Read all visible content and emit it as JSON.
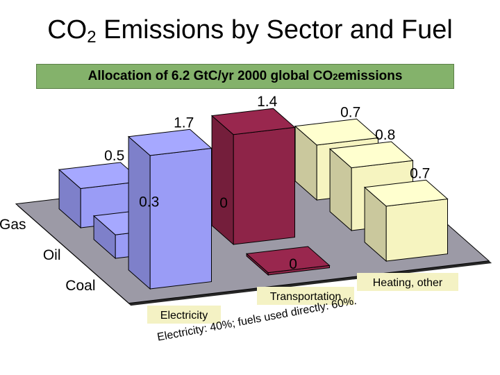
{
  "title_main": "CO",
  "title_sub": "2",
  "title_rest": " Emissions by Sector and Fuel",
  "subtitle_main": "Allocation of 6.2 GtC/yr 2000 global CO",
  "subtitle_sub": "2",
  "subtitle_rest": " emissions",
  "colors": {
    "floor": "#9c9aa6",
    "electricity": "#9a9cf6",
    "transportation": "#8e2448",
    "heating": "#f6f4c0",
    "subtitle_bg": "#84b26b",
    "label_bg": "#f4f2c4"
  },
  "chart_data": {
    "type": "bar",
    "subtype": "3d-column",
    "title": "CO2 Emissions by Sector and Fuel",
    "subtitle": "Allocation of 6.2 GtC/yr 2000 global CO2 emissions",
    "categories": [
      "Electricity",
      "Transportation",
      "Heating, other"
    ],
    "series": [
      {
        "name": "Gas",
        "values": [
          0.5,
          0,
          0.7
        ]
      },
      {
        "name": "Oil",
        "values": [
          0.3,
          1.4,
          0.8
        ]
      },
      {
        "name": "Coal",
        "values": [
          1.7,
          0,
          0.7
        ]
      }
    ],
    "value_labels": {
      "electricity": [
        "0.5",
        "0.3",
        "1.7"
      ],
      "transportation": [
        "0",
        "1.4",
        "0"
      ],
      "heating": [
        "0.7",
        "0.8",
        "0.7"
      ]
    },
    "row_labels": [
      "Gas",
      "Oil",
      "Coal"
    ],
    "col_labels": [
      "Electricity",
      "Transportation",
      "Heating, other"
    ]
  },
  "note": "Electricity: 40%;  fuels used directly: 60%."
}
